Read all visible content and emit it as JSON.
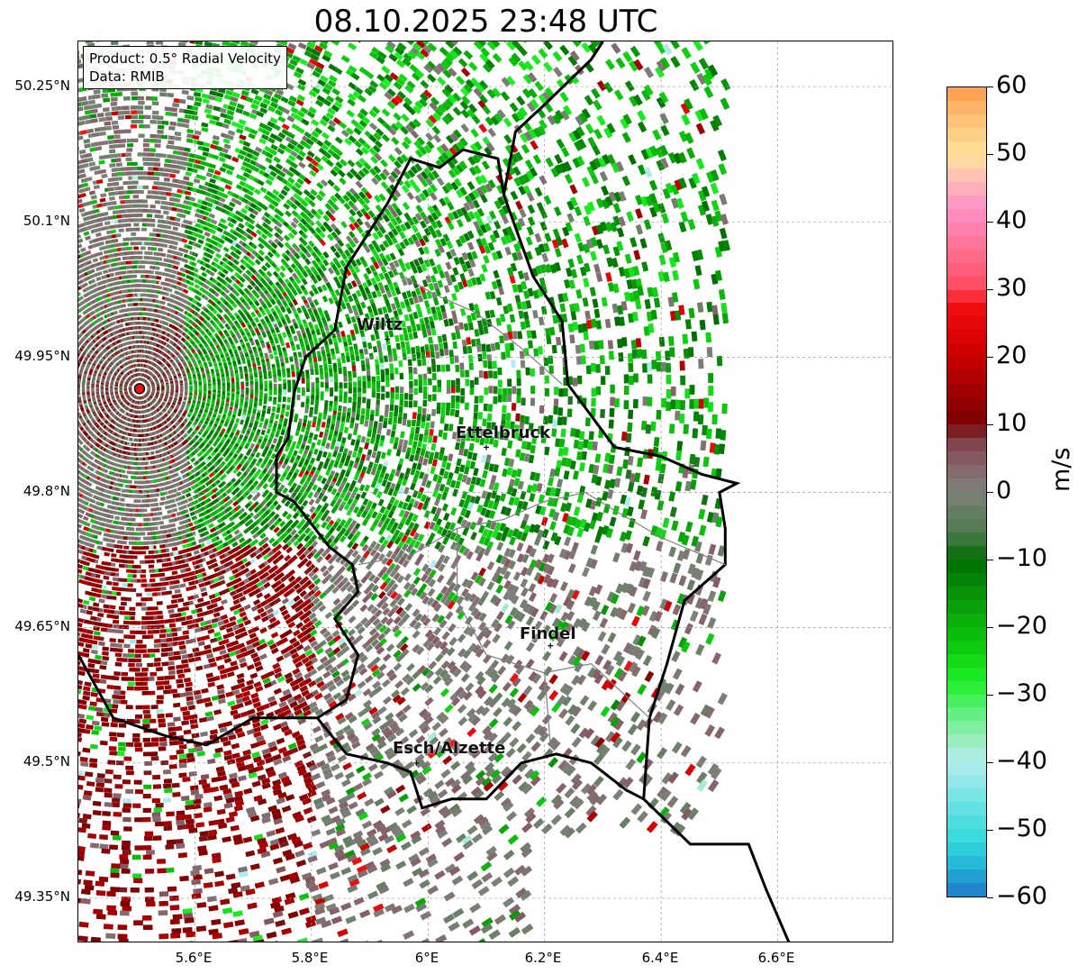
{
  "title": "08.10.2025 23:48 UTC",
  "info": {
    "product": "Product: 0.5° Radial Velocity",
    "data": "Data: RMIB"
  },
  "axes": {
    "y_ticks": [
      "50.25°N",
      "50.1°N",
      "49.95°N",
      "49.8°N",
      "49.65°N",
      "49.5°N",
      "49.35°N"
    ],
    "x_ticks": [
      "5.6°E",
      "5.8°E",
      "6°E",
      "6.2°E",
      "6.4°E",
      "6.6°E"
    ]
  },
  "cities": [
    {
      "name": "Wiltz",
      "lon": 5.93,
      "lat": 49.97
    },
    {
      "name": "Ettelbruck",
      "lon": 6.1,
      "lat": 49.85
    },
    {
      "name": "Findel",
      "lon": 6.21,
      "lat": 49.63
    },
    {
      "name": "Esch/Alzette",
      "lon": 5.98,
      "lat": 49.5
    }
  ],
  "radar_site": {
    "lon": 5.505,
    "lat": 49.915,
    "color": "#e8130e"
  },
  "colorbar": {
    "label": "m/s",
    "ticks": [
      "60",
      "50",
      "40",
      "30",
      "20",
      "10",
      "0",
      "−10",
      "−20",
      "−30",
      "−40",
      "−50",
      "−60"
    ],
    "min": -60,
    "max": 60,
    "stops": [
      {
        "v": -60,
        "c": "#1f78c8"
      },
      {
        "v": -56,
        "c": "#22aed6"
      },
      {
        "v": -52,
        "c": "#30d8dc"
      },
      {
        "v": -46,
        "c": "#6ee3e3"
      },
      {
        "v": -40,
        "c": "#b5ecef"
      },
      {
        "v": -36,
        "c": "#90eeb0"
      },
      {
        "v": -32,
        "c": "#55f075"
      },
      {
        "v": -28,
        "c": "#1bf024"
      },
      {
        "v": -22,
        "c": "#0cc40c"
      },
      {
        "v": -16,
        "c": "#089a08"
      },
      {
        "v": -10,
        "c": "#006d00"
      },
      {
        "v": -6,
        "c": "#4e7a4e"
      },
      {
        "v": 0,
        "c": "#7c8278"
      },
      {
        "v": 4,
        "c": "#86636b"
      },
      {
        "v": 8,
        "c": "#7f3c43"
      },
      {
        "v": 10,
        "c": "#7a0000"
      },
      {
        "v": 16,
        "c": "#a80000"
      },
      {
        "v": 22,
        "c": "#d80000"
      },
      {
        "v": 28,
        "c": "#f41010"
      },
      {
        "v": 30,
        "c": "#ff4a60"
      },
      {
        "v": 36,
        "c": "#ff7090"
      },
      {
        "v": 42,
        "c": "#ff90c8"
      },
      {
        "v": 46,
        "c": "#ffb8b8"
      },
      {
        "v": 50,
        "c": "#ffe29a"
      },
      {
        "v": 56,
        "c": "#ffbc72"
      },
      {
        "v": 60,
        "c": "#ff9a4a"
      }
    ]
  },
  "extent": {
    "lon_min": 5.4,
    "lon_max": 6.8,
    "lat_min": 49.3,
    "lat_max": 50.3
  }
}
